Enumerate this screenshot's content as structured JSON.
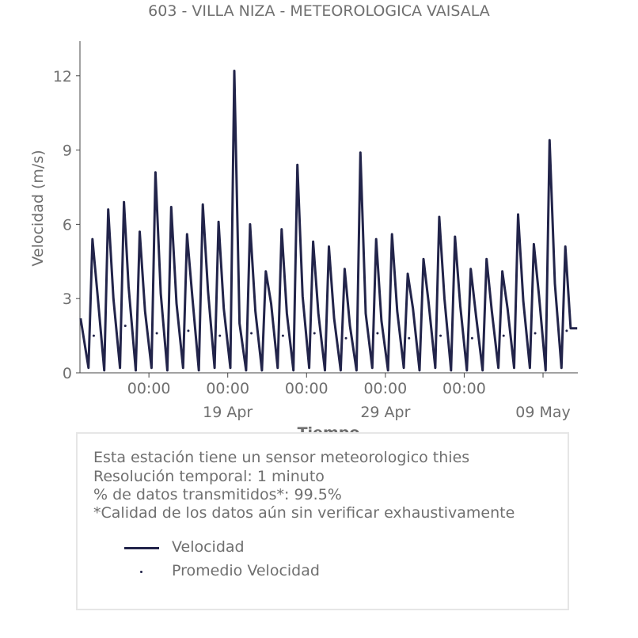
{
  "chart_data": {
    "type": "line",
    "title": "603 - VILLA NIZA - METEOROLOGICA VAISALA",
    "xlabel": "Tiempo",
    "ylabel": "Velocidad (m/s)",
    "ylim": [
      0,
      13.4
    ],
    "xlim": [
      "2024-04-09T15:00",
      "2024-05-11T05:00"
    ],
    "y_ticks": [
      0,
      3,
      6,
      9,
      12
    ],
    "x_ticks": [
      {
        "x": "2024-04-14T00:00",
        "label": "00:00"
      },
      {
        "x": "2024-04-19T00:00",
        "label": "00:00",
        "sublabel": "19 Apr"
      },
      {
        "x": "2024-04-24T00:00",
        "label": "00:00"
      },
      {
        "x": "2024-04-29T00:00",
        "label": "00:00",
        "sublabel": "29 Apr"
      },
      {
        "x": "2024-05-04T00:00",
        "label": "00:00"
      },
      {
        "x": "2024-05-09T00:00",
        "label": "",
        "sublabel": "09 May"
      }
    ],
    "grid": false,
    "colors": {
      "velocidad": "#22244a",
      "promedio": "#22244a"
    },
    "series": [
      {
        "name": "Velocidad",
        "style": "line",
        "x": [
          "2024-04-09T16:00",
          "2024-04-10T04:00",
          "2024-04-10T10:00",
          "2024-04-10T18:00",
          "2024-04-11T04:00",
          "2024-04-11T10:00",
          "2024-04-11T18:00",
          "2024-04-12T04:00",
          "2024-04-12T10:00",
          "2024-04-12T17:00",
          "2024-04-13T04:00",
          "2024-04-13T10:00",
          "2024-04-13T18:00",
          "2024-04-14T04:00",
          "2024-04-14T10:00",
          "2024-04-14T18:00",
          "2024-04-15T04:00",
          "2024-04-15T10:00",
          "2024-04-15T18:00",
          "2024-04-16T04:00",
          "2024-04-16T10:00",
          "2024-04-16T18:00",
          "2024-04-17T04:00",
          "2024-04-17T10:00",
          "2024-04-17T18:00",
          "2024-04-18T04:00",
          "2024-04-18T10:00",
          "2024-04-18T18:00",
          "2024-04-19T04:00",
          "2024-04-19T10:00",
          "2024-04-19T18:00",
          "2024-04-20T04:00",
          "2024-04-20T10:00",
          "2024-04-20T18:00",
          "2024-04-21T04:00",
          "2024-04-21T10:00",
          "2024-04-21T18:00",
          "2024-04-22T04:00",
          "2024-04-22T10:00",
          "2024-04-22T18:00",
          "2024-04-23T04:00",
          "2024-04-23T10:00",
          "2024-04-23T18:00",
          "2024-04-24T04:00",
          "2024-04-24T10:00",
          "2024-04-24T18:00",
          "2024-04-25T04:00",
          "2024-04-25T10:00",
          "2024-04-25T18:00",
          "2024-04-26T04:00",
          "2024-04-26T10:00",
          "2024-04-26T18:00",
          "2024-04-27T04:00",
          "2024-04-27T10:00",
          "2024-04-27T18:00",
          "2024-04-28T04:00",
          "2024-04-28T10:00",
          "2024-04-28T18:00",
          "2024-04-29T04:00",
          "2024-04-29T10:00",
          "2024-04-29T18:00",
          "2024-04-30T04:00",
          "2024-04-30T10:00",
          "2024-04-30T18:00",
          "2024-05-01T04:00",
          "2024-05-01T10:00",
          "2024-05-01T18:00",
          "2024-05-02T04:00",
          "2024-05-02T10:00",
          "2024-05-02T18:00",
          "2024-05-03T04:00",
          "2024-05-03T10:00",
          "2024-05-03T18:00",
          "2024-05-04T04:00",
          "2024-05-04T10:00",
          "2024-05-04T18:00",
          "2024-05-05T04:00",
          "2024-05-05T10:00",
          "2024-05-05T18:00",
          "2024-05-06T04:00",
          "2024-05-06T10:00",
          "2024-05-06T18:00",
          "2024-05-07T04:00",
          "2024-05-07T10:00",
          "2024-05-07T18:00",
          "2024-05-08T04:00",
          "2024-05-08T10:00",
          "2024-05-08T18:00",
          "2024-05-09T04:00",
          "2024-05-09T10:00",
          "2024-05-09T18:00",
          "2024-05-10T04:00",
          "2024-05-10T10:00",
          "2024-05-10T18:00",
          "2024-05-11T04:00"
        ],
        "y": [
          2.2,
          0.2,
          5.4,
          3.1,
          0.1,
          6.6,
          3.0,
          0.2,
          6.9,
          3.5,
          0.1,
          5.7,
          2.5,
          0.2,
          8.1,
          3.2,
          0.1,
          6.7,
          2.8,
          0.2,
          5.6,
          3.1,
          0.1,
          6.8,
          3.3,
          0.2,
          6.1,
          2.6,
          0.2,
          12.2,
          2.0,
          0.1,
          6.0,
          2.5,
          0.1,
          4.1,
          2.8,
          0.2,
          5.8,
          2.4,
          0.1,
          8.4,
          3.1,
          0.2,
          5.3,
          2.4,
          0.1,
          5.1,
          2.2,
          0.1,
          4.2,
          1.9,
          0.1,
          8.9,
          2.4,
          0.2,
          5.4,
          2.1,
          0.1,
          5.6,
          2.5,
          0.2,
          4.0,
          2.6,
          0.1,
          4.6,
          2.8,
          0.2,
          6.3,
          3.0,
          0.1,
          5.5,
          2.7,
          0.1,
          4.2,
          2.3,
          0.1,
          4.6,
          2.5,
          0.2,
          4.1,
          2.6,
          0.2,
          6.4,
          2.9,
          0.2,
          5.2,
          3.1,
          0.1,
          9.4,
          3.6,
          0.2,
          5.1,
          1.8,
          1.8
        ]
      },
      {
        "name": "Promedio Velocidad",
        "style": "dots",
        "x": [
          "2024-04-10T12:00",
          "2024-04-12T12:00",
          "2024-04-14T12:00",
          "2024-04-16T12:00",
          "2024-04-18T12:00",
          "2024-04-20T12:00",
          "2024-04-22T12:00",
          "2024-04-24T12:00",
          "2024-04-26T12:00",
          "2024-04-28T12:00",
          "2024-04-30T12:00",
          "2024-05-02T12:00",
          "2024-05-04T12:00",
          "2024-05-06T12:00",
          "2024-05-08T12:00",
          "2024-05-10T12:00"
        ],
        "y": [
          1.5,
          1.9,
          1.6,
          1.7,
          1.5,
          1.6,
          1.5,
          1.6,
          1.4,
          1.6,
          1.4,
          1.5,
          1.4,
          1.5,
          1.6,
          1.7
        ]
      }
    ]
  },
  "info": {
    "line1": "Esta estación tiene un sensor meteorologico thies",
    "line2": "Resolución temporal: 1 minuto",
    "line3": "% de datos transmitidos*: 99.5%",
    "line4": "*Calidad de los datos aún sin verificar exhaustivamente"
  },
  "legend": {
    "item1": "Velocidad",
    "item2": "Promedio Velocidad"
  }
}
